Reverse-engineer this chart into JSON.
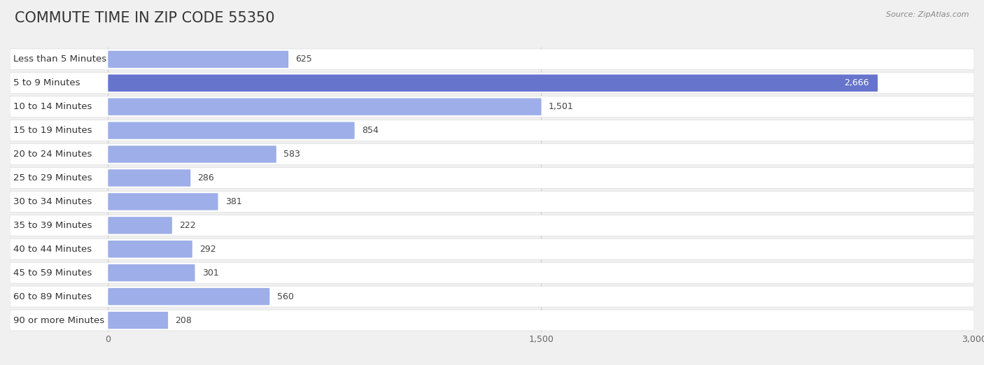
{
  "title": "COMMUTE TIME IN ZIP CODE 55350",
  "source": "Source: ZipAtlas.com",
  "categories": [
    "Less than 5 Minutes",
    "5 to 9 Minutes",
    "10 to 14 Minutes",
    "15 to 19 Minutes",
    "20 to 24 Minutes",
    "25 to 29 Minutes",
    "30 to 34 Minutes",
    "35 to 39 Minutes",
    "40 to 44 Minutes",
    "45 to 59 Minutes",
    "60 to 89 Minutes",
    "90 or more Minutes"
  ],
  "values": [
    625,
    2666,
    1501,
    854,
    583,
    286,
    381,
    222,
    292,
    301,
    560,
    208
  ],
  "xlim": [
    0,
    3000
  ],
  "xticks": [
    0,
    1500,
    3000
  ],
  "xtick_labels": [
    "0",
    "1,500",
    "3,000"
  ],
  "bar_color_strong": "#6674cc",
  "bar_color_light": "#9daee8",
  "background_color": "#f0f0f0",
  "row_bg_color": "#ffffff",
  "title_fontsize": 15,
  "label_fontsize": 9.5,
  "value_fontsize": 9,
  "axis_fontsize": 9,
  "source_fontsize": 8
}
